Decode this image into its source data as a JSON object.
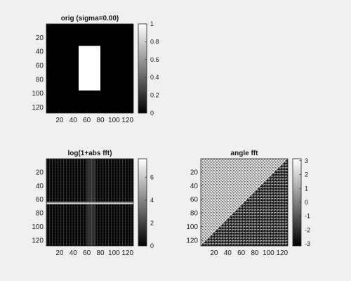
{
  "figure": {
    "background": "#f0f0f0",
    "axis_color": "#262626"
  },
  "chart_data": [
    {
      "type": "heatmap",
      "panel": "top-left",
      "title": "orig (sigma=0.00)",
      "content": "white rectangle on black background",
      "image_size": [
        128,
        128
      ],
      "rectangle": {
        "x_range": [
          48,
          80
        ],
        "y_range": [
          32,
          96
        ],
        "value": 1,
        "background_value": 0
      },
      "xlim": [
        0.5,
        128.5
      ],
      "ylim": [
        0.5,
        128.5
      ],
      "xticks": [
        20,
        40,
        60,
        80,
        100,
        120
      ],
      "yticks": [
        20,
        40,
        60,
        80,
        100,
        120
      ],
      "xtick_labels": [
        "20",
        "40",
        "60",
        "80",
        "100",
        "120"
      ],
      "ytick_labels": [
        "20",
        "40",
        "60",
        "80",
        "100",
        "120"
      ],
      "colormap": "gray",
      "colorbar": {
        "range": [
          0,
          1
        ],
        "ticks": [
          0,
          0.2,
          0.4,
          0.6,
          0.8,
          1
        ],
        "tick_labels": [
          "0",
          "0.2",
          "0.4",
          "0.6",
          "0.8",
          "1"
        ]
      }
    },
    {
      "type": "heatmap",
      "panel": "bottom-left",
      "title": "log(1+abs fft)",
      "content": "log magnitude spectrum of centered rectangle: bright horizontal line near row 65 and vertical ridges near column 65",
      "image_size": [
        128,
        128
      ],
      "xlim": [
        0.5,
        128.5
      ],
      "ylim": [
        0.5,
        128.5
      ],
      "xticks": [
        20,
        40,
        60,
        80,
        100,
        120
      ],
      "yticks": [
        20,
        40,
        60,
        80,
        100,
        120
      ],
      "xtick_labels": [
        "20",
        "40",
        "60",
        "80",
        "100",
        "120"
      ],
      "ytick_labels": [
        "20",
        "40",
        "60",
        "80",
        "100",
        "120"
      ],
      "colormap": "gray",
      "colorbar": {
        "range": [
          0,
          7.62
        ],
        "ticks": [
          0,
          2,
          4,
          6
        ],
        "tick_labels": [
          "0",
          "2",
          "4",
          "6"
        ]
      }
    },
    {
      "type": "heatmap",
      "panel": "bottom-right",
      "title": "angle fft",
      "content": "phase spectrum with diagonal split: lighter checker texture above anti-diagonal, darker below",
      "image_size": [
        128,
        128
      ],
      "xlim": [
        0.5,
        128.5
      ],
      "ylim": [
        0.5,
        128.5
      ],
      "xticks": [
        20,
        40,
        60,
        80,
        100,
        120
      ],
      "yticks": [
        20,
        40,
        60,
        80,
        100,
        120
      ],
      "xtick_labels": [
        "20",
        "40",
        "60",
        "80",
        "100",
        "120"
      ],
      "ytick_labels": [
        "20",
        "40",
        "60",
        "80",
        "100",
        "120"
      ],
      "colormap": "gray",
      "colorbar": {
        "range": [
          -3.1416,
          3.1416
        ],
        "ticks": [
          -3,
          -2,
          -1,
          0,
          1,
          2,
          3
        ],
        "tick_labels": [
          "-3",
          "-2",
          "-1",
          "0",
          "1",
          "2",
          "3"
        ]
      }
    }
  ]
}
